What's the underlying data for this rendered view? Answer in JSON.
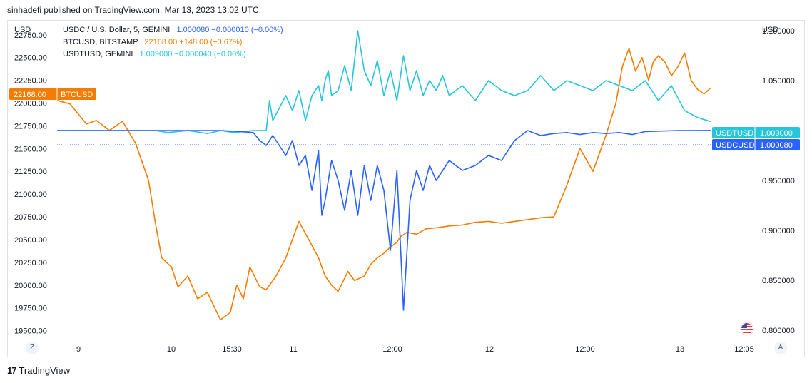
{
  "publisher": "sinhadefi published on TradingView.com, Mar 13, 2023 13:02 UTC",
  "brand": "TradingView",
  "currency_left": "USD",
  "currency_right": "USD",
  "btn_z": "Z",
  "btn_a": "A",
  "legend": [
    {
      "label": "USDC / U.S. Dollar, 5, GEMINI",
      "price": "1.000080",
      "change": "−0.000010 (−0.00%)",
      "color": "#2962ff"
    },
    {
      "label": "BTCUSD, BITSTAMP",
      "price": "22168.00",
      "change": "+148.00 (+0.67%)",
      "color": "#f57c00"
    },
    {
      "label": "USDTUSD, GEMINI",
      "price": "1.009000",
      "change": "−0.000040 (−0.00%)",
      "color": "#26c6da"
    }
  ],
  "badges": {
    "btc": {
      "price": "22168.00",
      "symbol": "BTCUSD",
      "color": "#f57c00"
    },
    "usdt": {
      "price": "1.009000",
      "symbol": "USDTUSD",
      "color": "#26c6da"
    },
    "usdc": {
      "price": "1.000080",
      "symbol": "USDCUSD",
      "color": "#2962ff"
    }
  },
  "chart_data": {
    "type": "line",
    "x_ticks": [
      "9",
      "10",
      "15:30",
      "11",
      "12:00",
      "12",
      "12:00",
      "13",
      "12:05"
    ],
    "left_axis": {
      "label": "USD",
      "ticks": [
        22750,
        22500,
        22250,
        22000,
        21750,
        21500,
        21250,
        21000,
        20750,
        20500,
        20250,
        20000,
        19750,
        19500
      ],
      "tick_labels": [
        "22750.00",
        "22500.00",
        "22250.00",
        "22000.00",
        "21750.00",
        "21500.00",
        "21250.00",
        "21000.00",
        "20750.00",
        "20500.00",
        "20250.00",
        "20000.00",
        "19750.00",
        "19500.00"
      ],
      "range": [
        19450,
        22850
      ]
    },
    "right_axis": {
      "label": "USD",
      "ticks": [
        1.1,
        1.05,
        0.95,
        0.9,
        0.85,
        0.8
      ],
      "tick_labels": [
        "1.100000",
        "1.050000",
        "0.950000",
        "0.900000",
        "0.850000",
        "0.800000"
      ],
      "range": [
        0.795,
        1.105
      ]
    },
    "series": [
      {
        "name": "BTCUSD, BITSTAMP",
        "axis": "left",
        "color": "#f57c00",
        "x": [
          0,
          0.02,
          0.045,
          0.06,
          0.08,
          0.1,
          0.12,
          0.14,
          0.15,
          0.16,
          0.175,
          0.185,
          0.2,
          0.215,
          0.23,
          0.25,
          0.265,
          0.275,
          0.285,
          0.295,
          0.31,
          0.32,
          0.335,
          0.35,
          0.37,
          0.385,
          0.4,
          0.41,
          0.42,
          0.43,
          0.445,
          0.455,
          0.47,
          0.48,
          0.49,
          0.5,
          0.51,
          0.52,
          0.525,
          0.535,
          0.55,
          0.565,
          0.58,
          0.6,
          0.62,
          0.64,
          0.66,
          0.68,
          0.7,
          0.72,
          0.74,
          0.76,
          0.78,
          0.8,
          0.82,
          0.84,
          0.855,
          0.865,
          0.875,
          0.885,
          0.895,
          0.905,
          0.912,
          0.92,
          0.93,
          0.94,
          0.95,
          0.96,
          0.97,
          0.98,
          0.99,
          1.0
        ],
        "y": [
          22030,
          21990,
          21770,
          21810,
          21700,
          21800,
          21560,
          21150,
          20700,
          20300,
          20200,
          19980,
          20100,
          19850,
          19920,
          19620,
          19700,
          20000,
          19850,
          20200,
          19980,
          19950,
          20100,
          20300,
          20700,
          20500,
          20300,
          20100,
          20000,
          19930,
          20150,
          20050,
          20100,
          20230,
          20300,
          20350,
          20420,
          20470,
          20530,
          20580,
          20560,
          20620,
          20630,
          20650,
          20660,
          20690,
          20700,
          20680,
          20700,
          20720,
          20740,
          20750,
          21100,
          21500,
          21250,
          21650,
          22000,
          22400,
          22600,
          22350,
          22500,
          22250,
          22450,
          22520,
          22450,
          22300,
          22400,
          22550,
          22250,
          22150,
          22100,
          22168
        ]
      },
      {
        "name": "USDTUSD, GEMINI",
        "axis": "right",
        "color": "#26c6da",
        "x": [
          0,
          0.1,
          0.15,
          0.17,
          0.2,
          0.23,
          0.25,
          0.27,
          0.3,
          0.32,
          0.325,
          0.33,
          0.35,
          0.36,
          0.37,
          0.38,
          0.39,
          0.4,
          0.405,
          0.41,
          0.415,
          0.42,
          0.43,
          0.44,
          0.45,
          0.46,
          0.47,
          0.48,
          0.49,
          0.5,
          0.51,
          0.52,
          0.53,
          0.54,
          0.55,
          0.56,
          0.57,
          0.58,
          0.59,
          0.6,
          0.62,
          0.64,
          0.66,
          0.68,
          0.7,
          0.72,
          0.74,
          0.76,
          0.78,
          0.8,
          0.82,
          0.84,
          0.86,
          0.88,
          0.9,
          0.92,
          0.94,
          0.96,
          0.98,
          1.0
        ],
        "y": [
          1.0,
          1.0,
          1.0,
          0.998,
          1.0,
          0.997,
          1.0,
          0.998,
          1.0,
          1.0,
          1.03,
          1.01,
          1.035,
          1.02,
          1.04,
          1.01,
          1.035,
          1.045,
          1.03,
          1.05,
          1.06,
          1.035,
          1.04,
          1.065,
          1.04,
          1.1,
          1.06,
          1.045,
          1.07,
          1.035,
          1.06,
          1.03,
          1.075,
          1.04,
          1.06,
          1.035,
          1.05,
          1.04,
          1.055,
          1.035,
          1.045,
          1.03,
          1.05,
          1.04,
          1.035,
          1.04,
          1.055,
          1.04,
          1.05,
          1.045,
          1.04,
          1.05,
          1.045,
          1.04,
          1.05,
          1.03,
          1.045,
          1.02,
          1.013,
          1.009
        ]
      },
      {
        "name": "USDC / U.S. Dollar, 5, GEMINI",
        "axis": "right",
        "color": "#2962ff",
        "x": [
          0,
          0.1,
          0.2,
          0.25,
          0.28,
          0.3,
          0.31,
          0.32,
          0.33,
          0.34,
          0.35,
          0.36,
          0.37,
          0.38,
          0.39,
          0.4,
          0.405,
          0.41,
          0.42,
          0.43,
          0.44,
          0.45,
          0.46,
          0.47,
          0.48,
          0.49,
          0.5,
          0.51,
          0.52,
          0.53,
          0.54,
          0.55,
          0.56,
          0.57,
          0.58,
          0.6,
          0.62,
          0.64,
          0.66,
          0.68,
          0.7,
          0.72,
          0.74,
          0.76,
          0.78,
          0.8,
          0.82,
          0.84,
          0.86,
          0.88,
          0.9,
          0.95,
          1.0
        ],
        "y": [
          1.0,
          1.0,
          1.0,
          1.0,
          0.999,
          0.998,
          0.99,
          0.985,
          0.995,
          0.985,
          0.975,
          0.99,
          0.965,
          0.975,
          0.94,
          0.98,
          0.915,
          0.93,
          0.97,
          0.95,
          0.92,
          0.96,
          0.915,
          0.965,
          0.93,
          0.965,
          0.94,
          0.88,
          0.96,
          0.82,
          0.93,
          0.96,
          0.94,
          0.965,
          0.95,
          0.97,
          0.96,
          0.965,
          0.975,
          0.97,
          0.99,
          1.0,
          0.995,
          0.997,
          0.998,
          0.996,
          0.998,
          0.997,
          0.998,
          0.996,
          0.999,
          1.0,
          1.00008
        ]
      }
    ]
  }
}
